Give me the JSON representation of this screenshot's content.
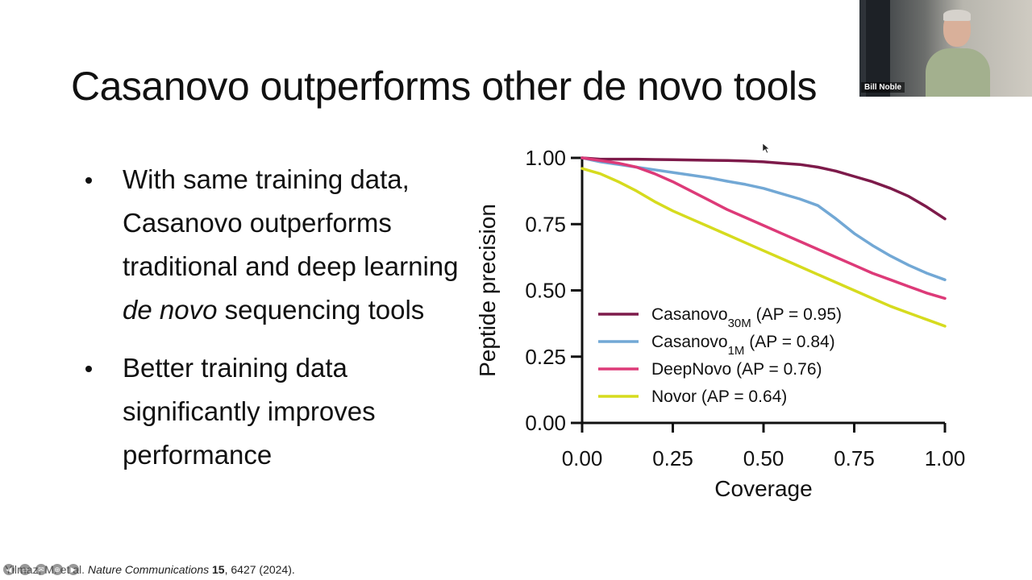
{
  "slide": {
    "title": "Casanovo outperforms other de novo tools",
    "bullets": [
      {
        "parts": [
          {
            "text": "With same training data, Casanovo outperforms traditional and deep learning ",
            "italic": false
          },
          {
            "text": "de novo",
            "italic": true
          },
          {
            "text": " sequencing tools",
            "italic": false
          }
        ]
      },
      {
        "parts": [
          {
            "text": "Better training data significantly improves performance",
            "italic": false
          }
        ]
      }
    ],
    "citation": {
      "lead": "Yilmaz, M. et al.",
      "journal": "Nature Communications",
      "volume": "15",
      "rest": ", 6427 (2024)."
    }
  },
  "video": {
    "participant_name": "Bill Noble"
  },
  "player_controls": [
    "back-icon",
    "captions-icon",
    "mail-icon",
    "zoom-icon",
    "forward-icon"
  ],
  "chart_data": {
    "type": "line",
    "xlabel": "Coverage",
    "ylabel": "Peptide precision",
    "xlim": [
      0,
      1
    ],
    "ylim": [
      0,
      1
    ],
    "xticks": [
      "0.00",
      "0.25",
      "0.50",
      "0.75",
      "1.00"
    ],
    "yticks": [
      "0.00",
      "0.25",
      "0.50",
      "0.75",
      "1.00"
    ],
    "grid": false,
    "legend_position": "lower-left",
    "x": [
      0.0,
      0.05,
      0.1,
      0.15,
      0.2,
      0.25,
      0.3,
      0.35,
      0.4,
      0.45,
      0.5,
      0.55,
      0.6,
      0.65,
      0.7,
      0.75,
      0.8,
      0.85,
      0.9,
      0.95,
      1.0
    ],
    "series": [
      {
        "name": "Casanovo",
        "sub": "30M",
        "suffix": " (AP = 0.95)",
        "color": "#7d1a4a",
        "values": [
          1.0,
          0.995,
          0.995,
          0.995,
          0.994,
          0.993,
          0.992,
          0.991,
          0.99,
          0.988,
          0.985,
          0.98,
          0.975,
          0.965,
          0.95,
          0.93,
          0.91,
          0.885,
          0.855,
          0.815,
          0.77
        ]
      },
      {
        "name": "Casanovo",
        "sub": "1M",
        "suffix": " (AP = 0.84)",
        "color": "#72a8d5",
        "values": [
          1.0,
          0.985,
          0.975,
          0.965,
          0.955,
          0.945,
          0.935,
          0.925,
          0.912,
          0.9,
          0.885,
          0.865,
          0.845,
          0.82,
          0.77,
          0.715,
          0.67,
          0.63,
          0.595,
          0.565,
          0.54
        ]
      },
      {
        "name": "DeepNovo",
        "sub": "",
        "suffix": " (AP = 0.76)",
        "color": "#dd3a78",
        "values": [
          1.0,
          0.99,
          0.98,
          0.965,
          0.94,
          0.91,
          0.875,
          0.84,
          0.805,
          0.775,
          0.745,
          0.715,
          0.685,
          0.655,
          0.625,
          0.595,
          0.565,
          0.54,
          0.515,
          0.49,
          0.47
        ]
      },
      {
        "name": "Novor",
        "sub": "",
        "suffix": " (AP = 0.64)",
        "color": "#d6db1e",
        "values": [
          0.96,
          0.94,
          0.91,
          0.875,
          0.835,
          0.8,
          0.77,
          0.74,
          0.71,
          0.68,
          0.65,
          0.62,
          0.59,
          0.56,
          0.53,
          0.5,
          0.47,
          0.44,
          0.415,
          0.39,
          0.365
        ]
      }
    ]
  }
}
